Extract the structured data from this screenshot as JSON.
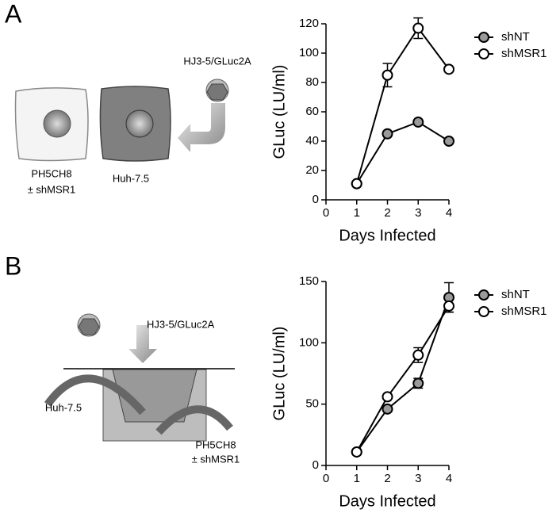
{
  "panel_labels": [
    "A",
    "B"
  ],
  "diagram_a": {
    "virus": "HJ3-5/GLuc2A",
    "cell_left": [
      "PH5CH8",
      "± shMSR1"
    ],
    "cell_right": "Huh-7.5"
  },
  "diagram_b": {
    "virus": "HJ3-5/GLuc2A",
    "bottom": "Huh-7.5",
    "insert": [
      "PH5CH8",
      "± shMSR1"
    ]
  },
  "chart_data": [
    {
      "type": "line",
      "xlabel": "Days Infected",
      "ylabel": "GLuc (LU/ml)",
      "x": [
        1,
        2,
        3,
        4
      ],
      "xlim": [
        0,
        4
      ],
      "xticks": [
        0,
        1,
        2,
        3,
        4
      ],
      "ylim": [
        0,
        120
      ],
      "yticks": [
        0,
        20,
        40,
        60,
        80,
        100,
        120
      ],
      "legend": "top-right",
      "series": [
        {
          "name": "shNT",
          "color": "#9a9a9a",
          "values": [
            11,
            45,
            53,
            40
          ],
          "errors": [
            null,
            null,
            null,
            null
          ]
        },
        {
          "name": "shMSR1",
          "color": "#ffffff",
          "values": [
            11,
            85,
            117,
            89
          ],
          "errors": [
            null,
            8,
            7,
            null
          ]
        }
      ]
    },
    {
      "type": "line",
      "xlabel": "Days Infected",
      "ylabel": "GLuc (LU/ml)",
      "x": [
        1,
        2,
        3,
        4
      ],
      "xlim": [
        0,
        4
      ],
      "xticks": [
        0,
        1,
        2,
        3,
        4
      ],
      "ylim": [
        0,
        150
      ],
      "yticks": [
        0,
        50,
        100,
        150
      ],
      "legend": "top-right",
      "series": [
        {
          "name": "shNT",
          "color": "#9a9a9a",
          "values": [
            11,
            46,
            67,
            137
          ],
          "errors": [
            null,
            null,
            4,
            12
          ]
        },
        {
          "name": "shMSR1",
          "color": "#ffffff",
          "values": [
            11,
            56,
            90,
            130
          ],
          "errors": [
            null,
            2,
            6,
            5
          ]
        }
      ]
    }
  ]
}
